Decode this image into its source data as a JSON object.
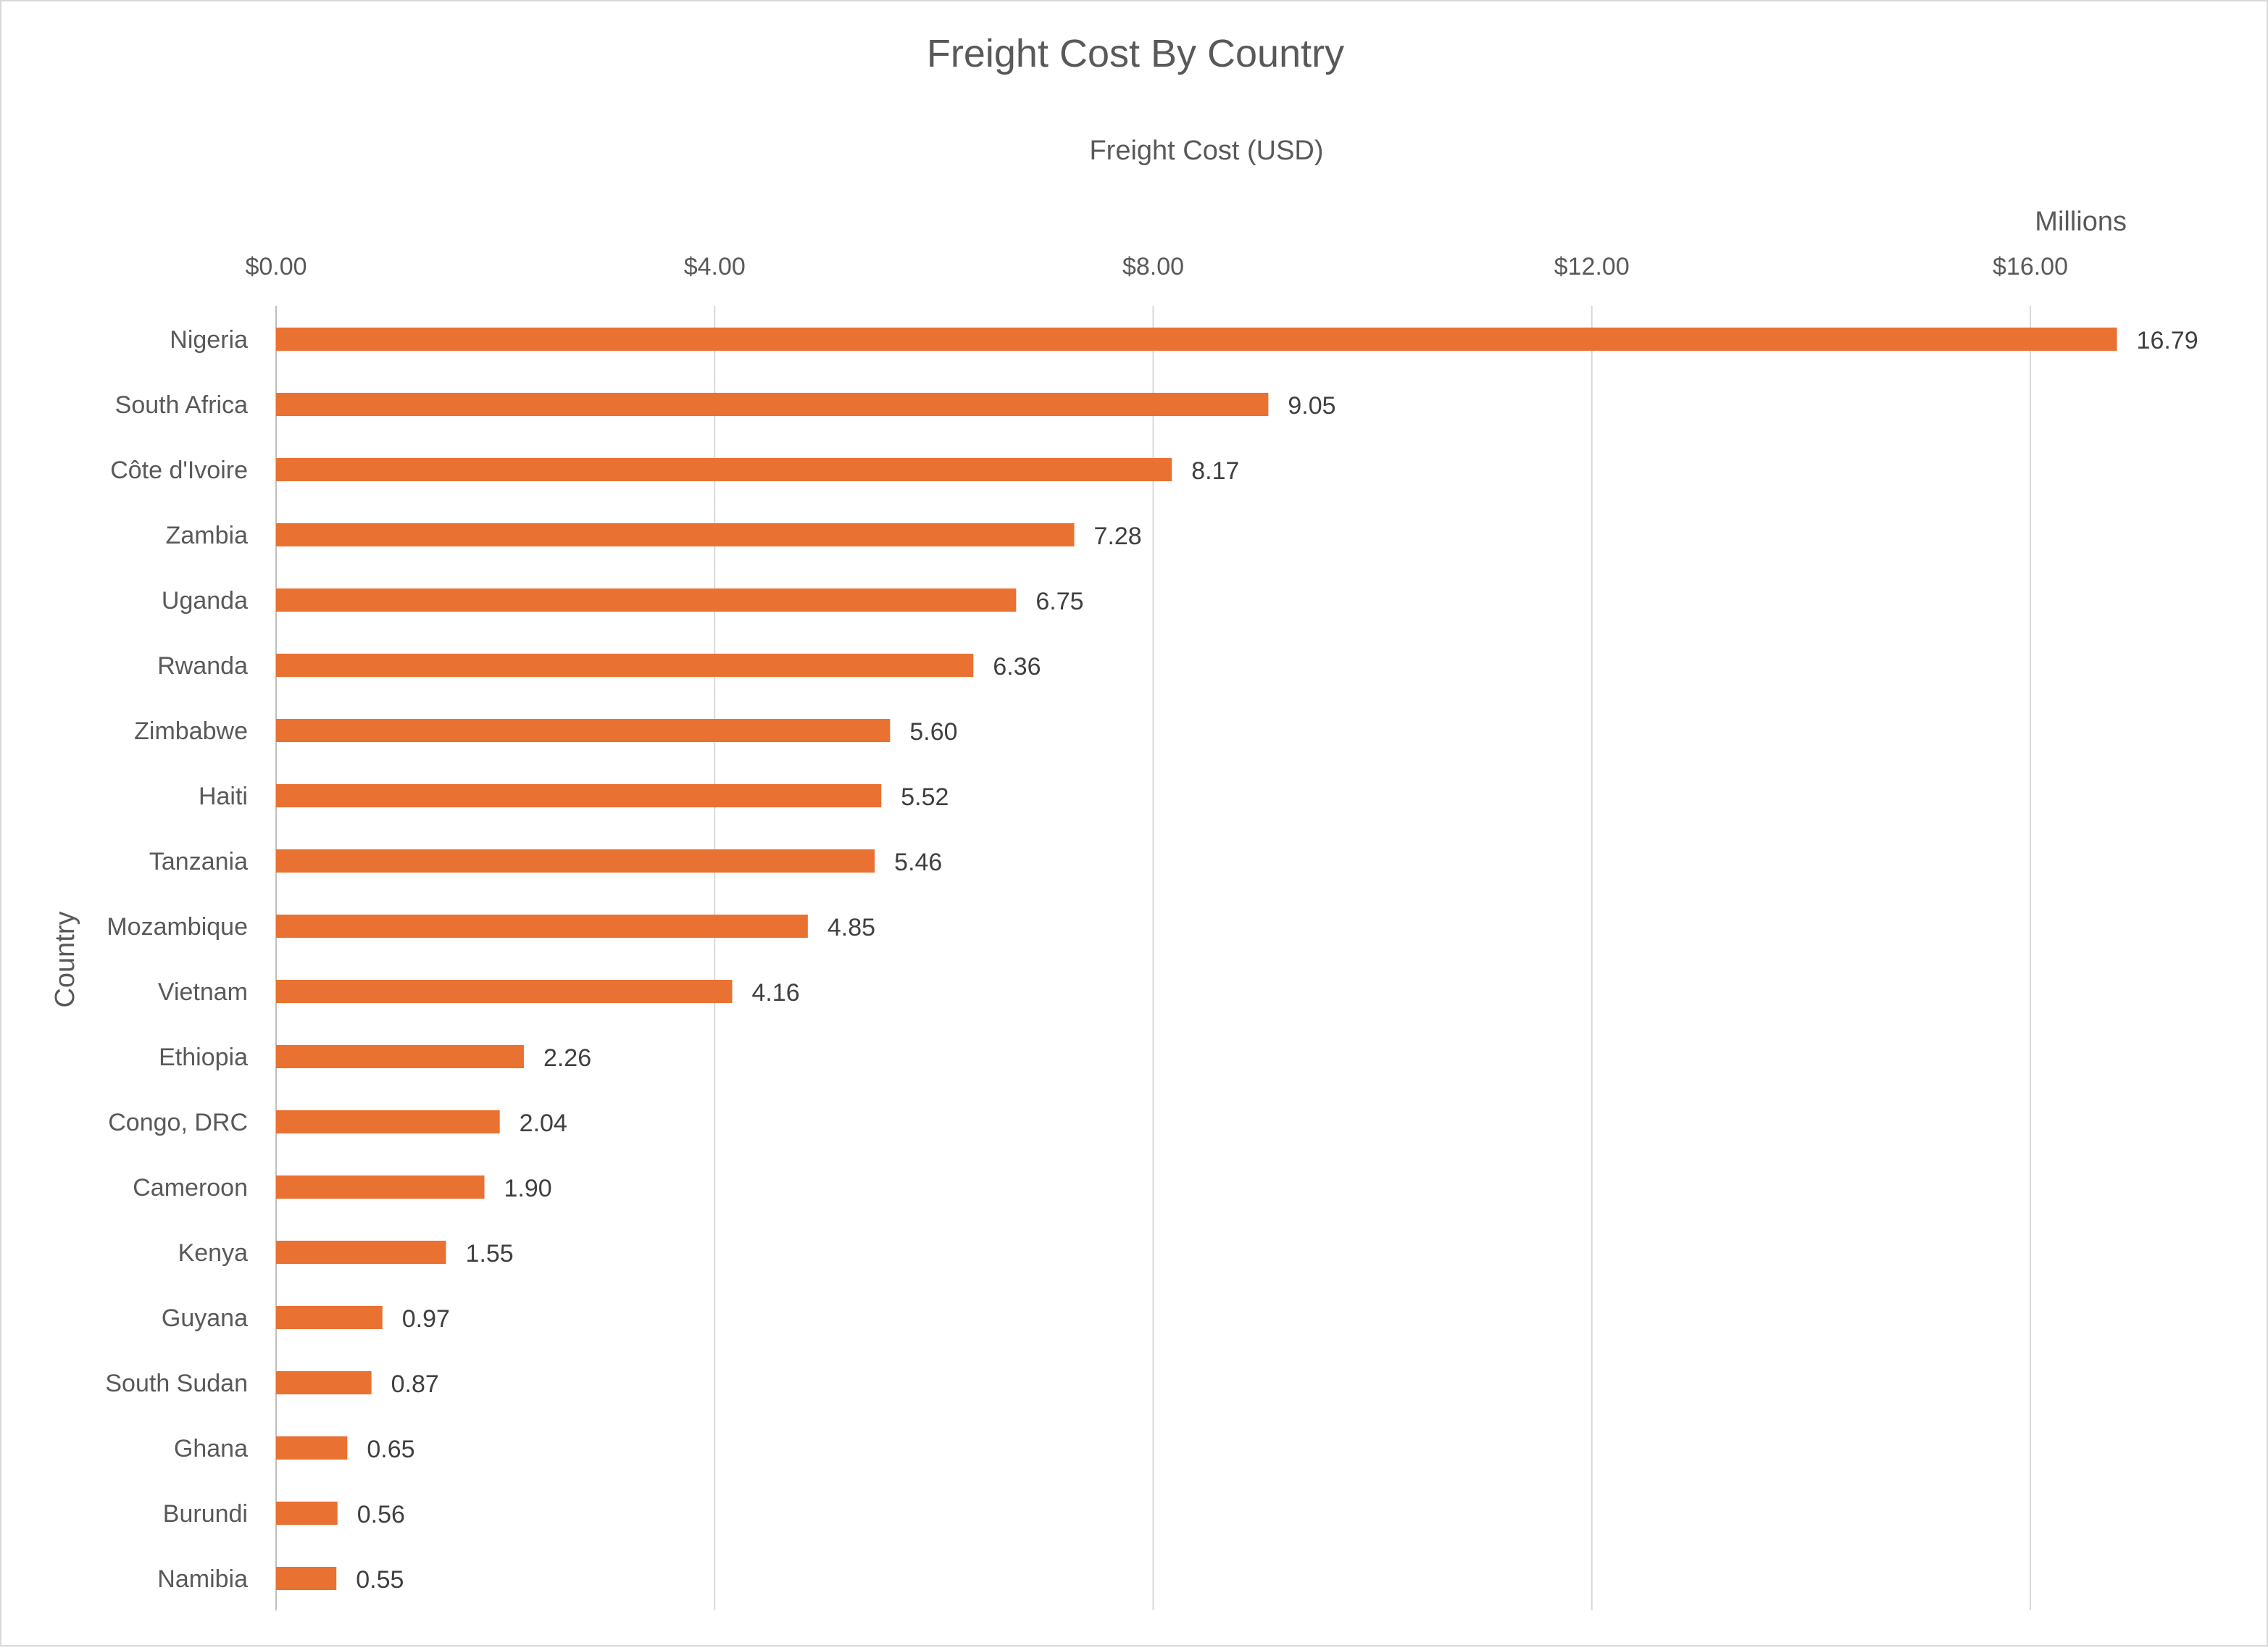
{
  "chart_data": {
    "type": "bar",
    "orientation": "horizontal",
    "title": "Freight Cost By Country",
    "xlabel": "Freight Cost (USD)",
    "ylabel": "Country",
    "units_label": "Millions",
    "xlim": [
      0,
      16.8
    ],
    "x_ticks": [
      0,
      4,
      8,
      12,
      16
    ],
    "x_tick_labels": [
      "$0.00",
      "$4.00",
      "$8.00",
      "$12.00",
      "$16.00"
    ],
    "x_axis_position": "top",
    "grid": true,
    "categories": [
      "Nigeria",
      "South Africa",
      "Côte d'Ivoire",
      "Zambia",
      "Uganda",
      "Rwanda",
      "Zimbabwe",
      "Haiti",
      "Tanzania",
      "Mozambique",
      "Vietnam",
      "Ethiopia",
      "Congo, DRC",
      "Cameroon",
      "Kenya",
      "Guyana",
      "South Sudan",
      "Ghana",
      "Burundi",
      "Namibia"
    ],
    "values": [
      16.79,
      9.05,
      8.17,
      7.28,
      6.75,
      6.36,
      5.6,
      5.52,
      5.46,
      4.85,
      4.16,
      2.26,
      2.04,
      1.9,
      1.55,
      0.97,
      0.87,
      0.65,
      0.56,
      0.55
    ],
    "data_labels": [
      "16.79",
      "9.05",
      "8.17",
      "7.28",
      "6.75",
      "6.36",
      "5.60",
      "5.52",
      "5.46",
      "4.85",
      "4.16",
      "2.26",
      "2.04",
      "1.90",
      "1.55",
      "0.97",
      "0.87",
      "0.65",
      "0.56",
      "0.55"
    ],
    "colors": {
      "bar": "#E97132",
      "grid": "#d9d9d9",
      "text": "#595959"
    }
  }
}
